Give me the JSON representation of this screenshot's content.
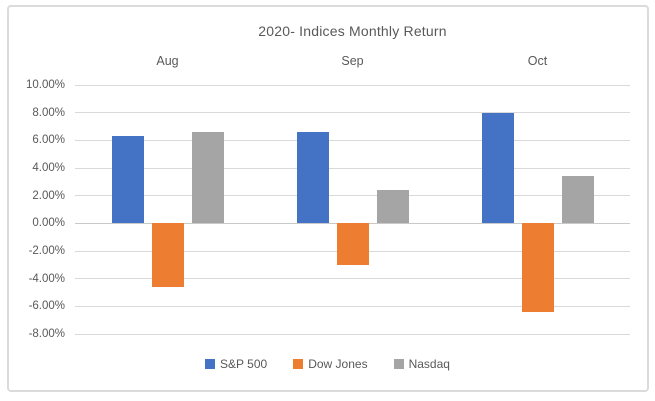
{
  "chart_data": {
    "type": "bar",
    "title": "2020- Indices Monthly Return",
    "categories": [
      "Aug",
      "Sep",
      "Oct"
    ],
    "series": [
      {
        "name": "S&P 500",
        "color": "#4472C4",
        "values": [
          6.3,
          6.6,
          8.0
        ]
      },
      {
        "name": "Dow Jones",
        "color": "#ED7D31",
        "values": [
          -4.6,
          -3.0,
          -6.4
        ]
      },
      {
        "name": "Nasdaq",
        "color": "#A5A5A5",
        "values": [
          6.6,
          2.4,
          3.4
        ]
      }
    ],
    "y_axis": {
      "min": -8,
      "max": 10,
      "step": 2,
      "tick_labels": [
        "10.00%",
        "8.00%",
        "6.00%",
        "4.00%",
        "2.00%",
        "0.00%",
        "-2.00%",
        "-4.00%",
        "-6.00%",
        "-8.00%"
      ]
    },
    "grid": true,
    "legend_position": "bottom",
    "category_label_position": "top",
    "colors": {
      "text": "#595959",
      "gridline": "#d9d9d9",
      "frame_border": "#dbdbdb",
      "background": "#ffffff"
    }
  }
}
